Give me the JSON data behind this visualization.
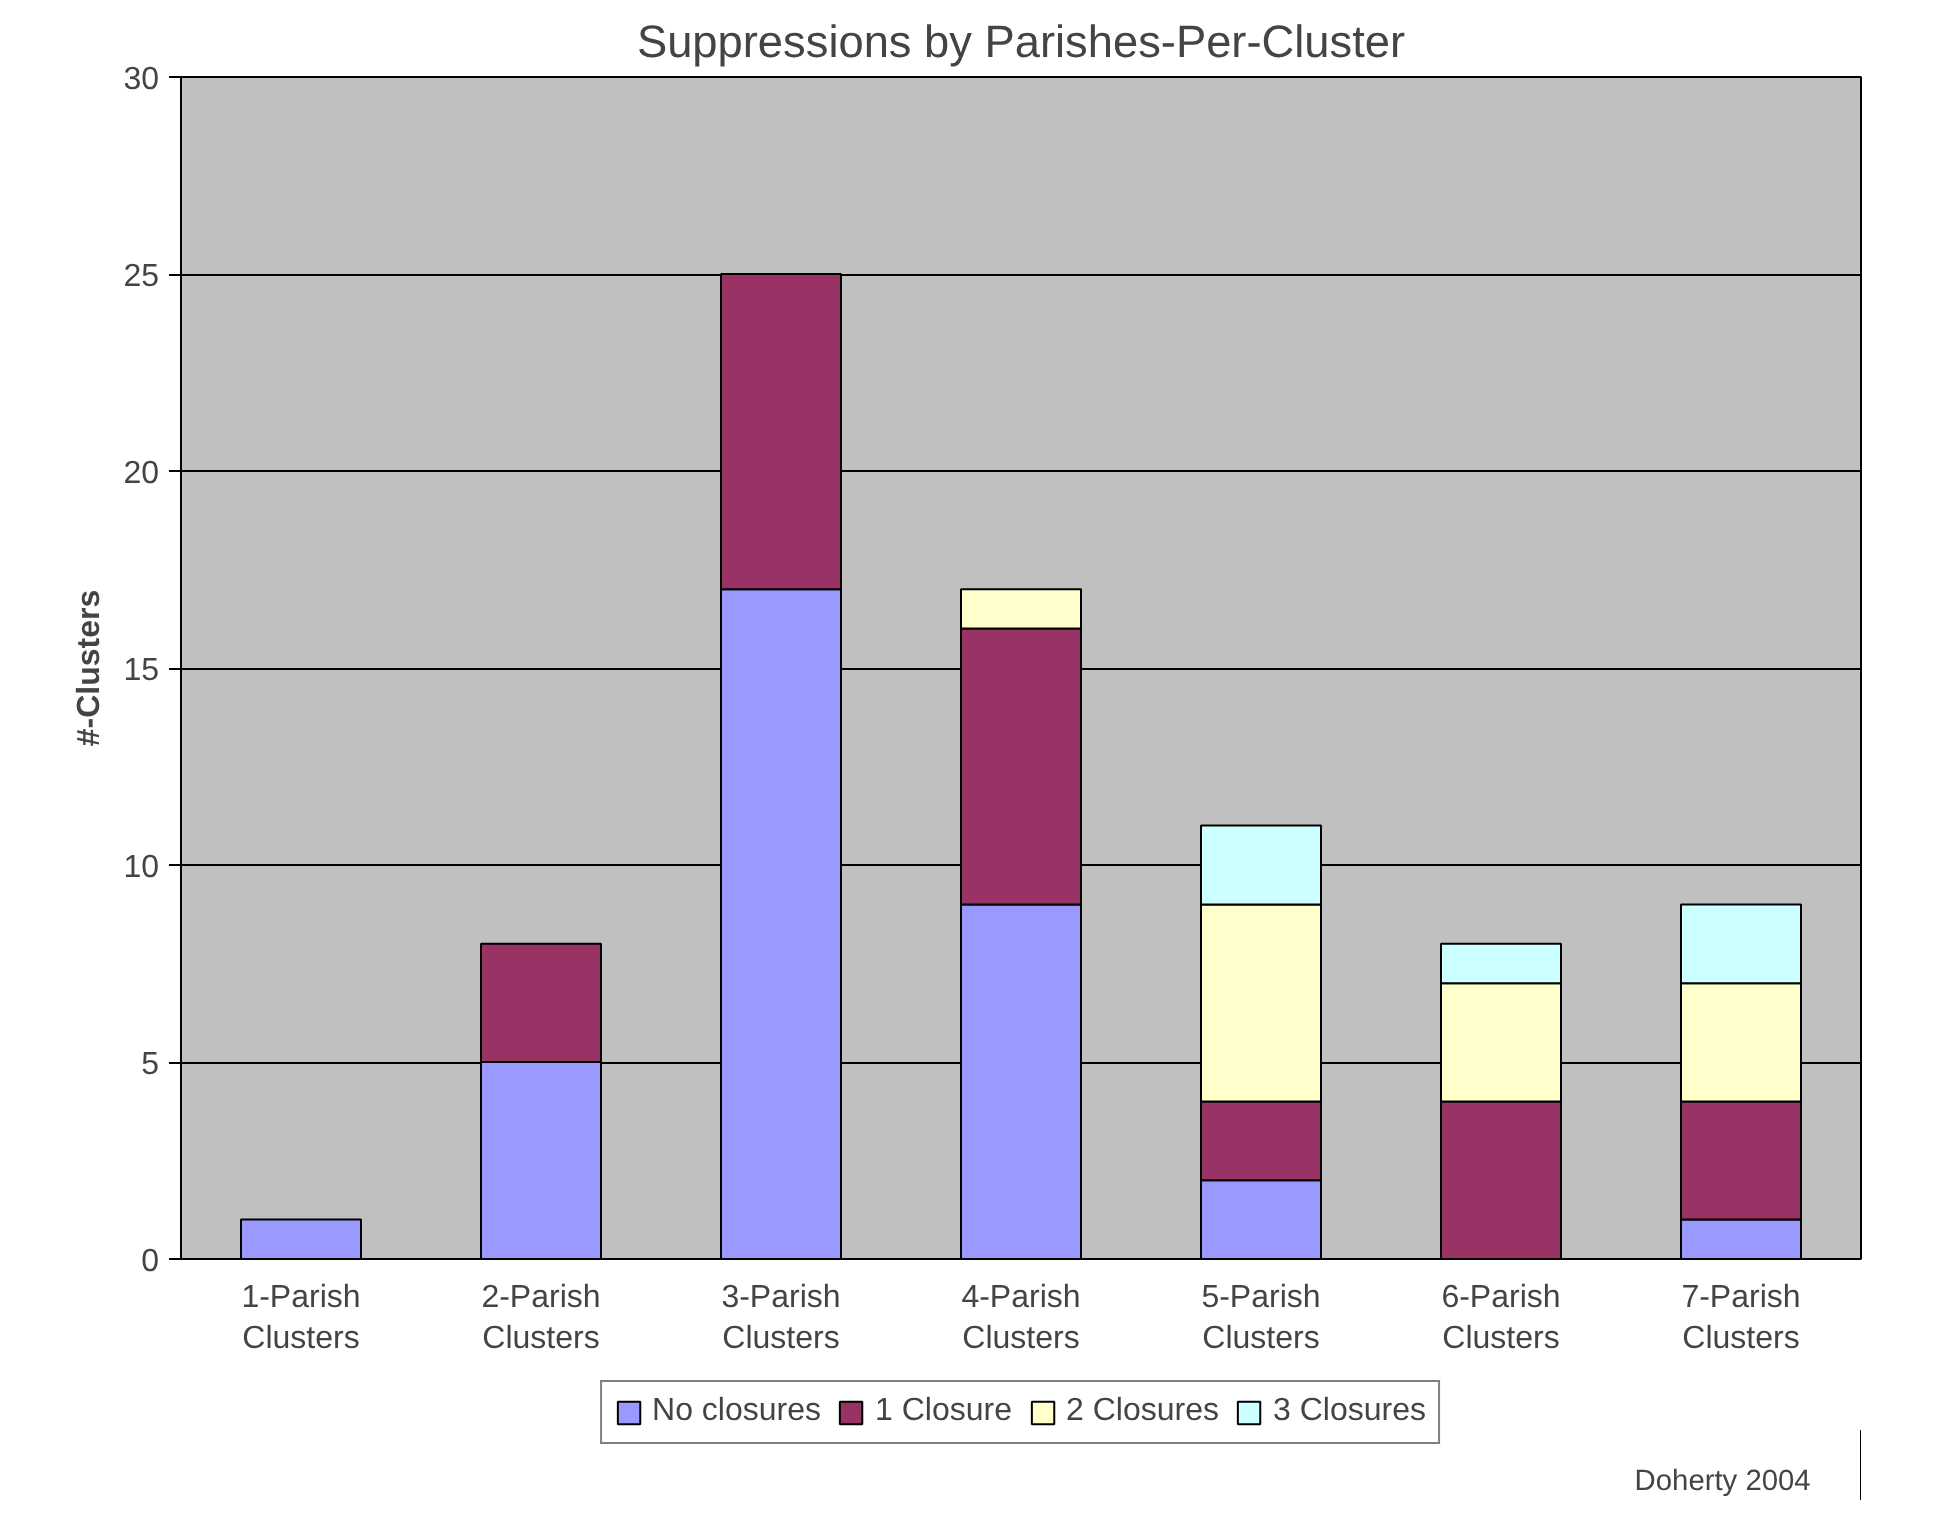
{
  "chart_data": {
    "type": "bar",
    "title": "Suppressions by Parishes-Per-Cluster",
    "ylabel": "#-Clusters",
    "categories": [
      "1-Parish Clusters",
      "2-Parish Clusters",
      "3-Parish Clusters",
      "4-Parish Clusters",
      "5-Parish Clusters",
      "6-Parish Clusters",
      "7-Parish Clusters"
    ],
    "stacked": true,
    "series": [
      {
        "name": "No closures",
        "color": "#9999ff",
        "values": [
          1,
          5,
          17,
          9,
          2,
          0,
          1
        ]
      },
      {
        "name": "1 Closure",
        "color": "#993366",
        "values": [
          0,
          3,
          8,
          7,
          2,
          4,
          3
        ]
      },
      {
        "name": "2 Closures",
        "color": "#ffffcc",
        "values": [
          0,
          0,
          0,
          1,
          5,
          3,
          3
        ]
      },
      {
        "name": "3 Closures",
        "color": "#ccffff",
        "values": [
          0,
          0,
          0,
          0,
          2,
          1,
          2
        ]
      }
    ],
    "ylim": [
      0,
      30
    ],
    "yticks": [
      0,
      5,
      10,
      15,
      20,
      25,
      30
    ],
    "grid": "y",
    "legend": "bottom",
    "annotations": [
      "Doherty 2004"
    ]
  }
}
